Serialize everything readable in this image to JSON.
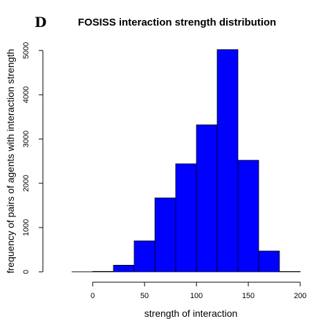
{
  "panel_label": "D",
  "chart_data": {
    "type": "bar",
    "title": "FOSISS interaction strength distribution",
    "xlabel": "strength of interaction",
    "ylabel": "frequency of pairs of agents with interaction strength",
    "bin_edges": [
      -20,
      0,
      20,
      40,
      60,
      80,
      100,
      120,
      140,
      160,
      180,
      200
    ],
    "values": [
      2,
      10,
      150,
      700,
      1670,
      2440,
      3320,
      5020,
      2520,
      470,
      8
    ],
    "x_ticks": [
      0,
      50,
      100,
      150,
      200
    ],
    "y_ticks": [
      0,
      1000,
      2000,
      3000,
      4000,
      5000
    ],
    "xlim": [
      -40,
      200
    ],
    "ylim": [
      0,
      5200
    ],
    "bar_color": "#0000ff",
    "grid": false,
    "legend": "none"
  }
}
